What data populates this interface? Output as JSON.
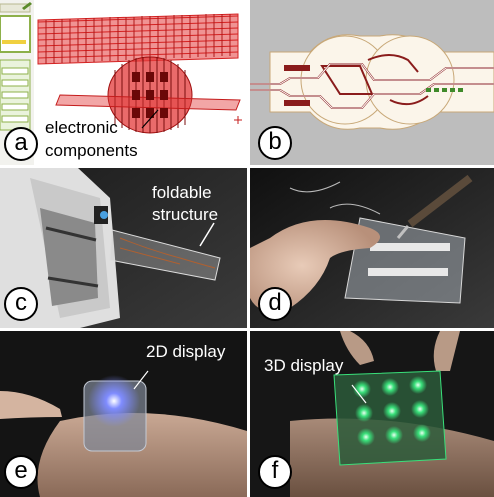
{
  "figure": {
    "panels": [
      {
        "id": "a",
        "badge": "a",
        "labels": [
          "electronic",
          "components"
        ]
      },
      {
        "id": "b",
        "badge": "b"
      },
      {
        "id": "c",
        "badge": "c",
        "labels": [
          "foldable",
          "structure"
        ]
      },
      {
        "id": "d",
        "badge": "d"
      },
      {
        "id": "e",
        "badge": "e",
        "labels": [
          "2D display"
        ]
      },
      {
        "id": "f",
        "badge": "f",
        "labels": [
          "3D display"
        ]
      }
    ]
  },
  "colors": {
    "cad_red": "#d42020",
    "trace_red": "#8a1c1c",
    "led_green": "#39e07a",
    "led_blue": "#7f8cff"
  }
}
